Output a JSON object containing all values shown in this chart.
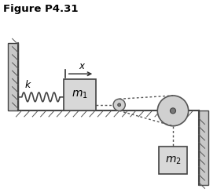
{
  "title": "Figure P4.31",
  "bg_color": "#ffffff",
  "wall_color": "#c8c8c8",
  "mass_color": "#d8d8d8",
  "mass_edge_color": "#444444",
  "spring_color": "#444444",
  "rope_color": "#555555",
  "pulley_color": "#d0d0d0",
  "pulley_edge_color": "#555555",
  "hatch_color": "#555555",
  "surface_color": "#cccccc"
}
